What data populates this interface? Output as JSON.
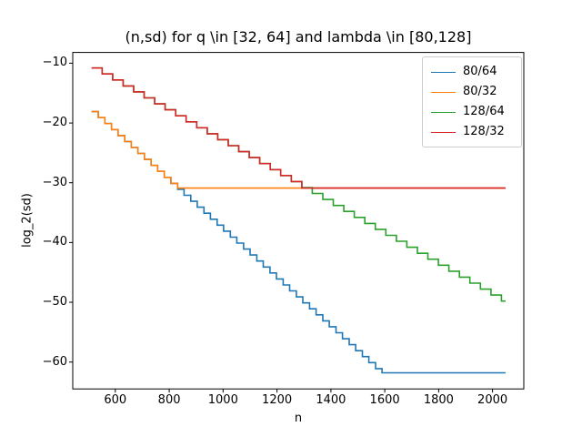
{
  "chart_data": {
    "type": "line",
    "draw_style": "steps-post",
    "title": "(n,sd) for q \\in [32, 64] and lambda \\in [80,128]",
    "xlabel": "n",
    "ylabel": "log_2(sd)",
    "xlim": [
      442,
      2116
    ],
    "ylim": [
      -64.5,
      -8.2
    ],
    "grid": false,
    "legend_position": "upper right",
    "x_ticks": [
      {
        "label": "600",
        "value": 600
      },
      {
        "label": "800",
        "value": 800
      },
      {
        "label": "1000",
        "value": 1000
      },
      {
        "label": "1200",
        "value": 1200
      },
      {
        "label": "1400",
        "value": 1400
      },
      {
        "label": "1600",
        "value": 1600
      },
      {
        "label": "1800",
        "value": 1800
      },
      {
        "label": "2000",
        "value": 2000
      }
    ],
    "y_ticks": [
      {
        "label": "−10",
        "value": -10
      },
      {
        "label": "−20",
        "value": -20
      },
      {
        "label": "−30",
        "value": -30
      },
      {
        "label": "−40",
        "value": -40
      },
      {
        "label": "−50",
        "value": -50
      },
      {
        "label": "−60",
        "value": -60
      }
    ],
    "series": [
      {
        "name": "80/64",
        "color": "#1f77b4",
        "points": [
          [
            512,
            -18.1
          ],
          [
            537,
            -19.1
          ],
          [
            561,
            -20.1
          ],
          [
            586,
            -21.1
          ],
          [
            610,
            -22.1
          ],
          [
            635,
            -23.1
          ],
          [
            659,
            -24.1
          ],
          [
            684,
            -25.1
          ],
          [
            708,
            -26.1
          ],
          [
            733,
            -27.1
          ],
          [
            757,
            -28.1
          ],
          [
            782,
            -29.1
          ],
          [
            806,
            -30.1
          ],
          [
            831,
            -31.1
          ],
          [
            855,
            -32.1
          ],
          [
            880,
            -33.1
          ],
          [
            904,
            -34.1
          ],
          [
            929,
            -35.1
          ],
          [
            953,
            -36.1
          ],
          [
            978,
            -37.1
          ],
          [
            1002,
            -38.1
          ],
          [
            1027,
            -39.1
          ],
          [
            1051,
            -40.1
          ],
          [
            1076,
            -41.1
          ],
          [
            1100,
            -42.1
          ],
          [
            1125,
            -43.1
          ],
          [
            1149,
            -44.1
          ],
          [
            1174,
            -45.1
          ],
          [
            1198,
            -46.1
          ],
          [
            1223,
            -47.1
          ],
          [
            1247,
            -48.1
          ],
          [
            1272,
            -49.1
          ],
          [
            1296,
            -50.1
          ],
          [
            1321,
            -51.1
          ],
          [
            1345,
            -52.1
          ],
          [
            1370,
            -53.1
          ],
          [
            1394,
            -54.1
          ],
          [
            1419,
            -55.1
          ],
          [
            1443,
            -56.1
          ],
          [
            1468,
            -57.1
          ],
          [
            1492,
            -58.1
          ],
          [
            1517,
            -59.1
          ],
          [
            1541,
            -60.1
          ],
          [
            1566,
            -61.1
          ],
          [
            1590,
            -61.8
          ],
          [
            2048,
            -61.8
          ]
        ]
      },
      {
        "name": "80/32",
        "color": "#ff7f0e",
        "points": [
          [
            512,
            -18.1
          ],
          [
            537,
            -19.1
          ],
          [
            561,
            -20.1
          ],
          [
            586,
            -21.1
          ],
          [
            610,
            -22.1
          ],
          [
            635,
            -23.1
          ],
          [
            659,
            -24.1
          ],
          [
            684,
            -25.1
          ],
          [
            708,
            -26.1
          ],
          [
            733,
            -27.1
          ],
          [
            757,
            -28.1
          ],
          [
            782,
            -29.1
          ],
          [
            806,
            -30.1
          ],
          [
            831,
            -30.9
          ],
          [
            2048,
            -30.9
          ]
        ]
      },
      {
        "name": "128/64",
        "color": "#2ca02c",
        "points": [
          [
            512,
            -10.8
          ],
          [
            551,
            -11.8
          ],
          [
            590,
            -12.8
          ],
          [
            629,
            -13.8
          ],
          [
            668,
            -14.8
          ],
          [
            707,
            -15.8
          ],
          [
            746,
            -16.8
          ],
          [
            785,
            -17.8
          ],
          [
            824,
            -18.8
          ],
          [
            863,
            -19.8
          ],
          [
            902,
            -20.8
          ],
          [
            941,
            -21.8
          ],
          [
            980,
            -22.8
          ],
          [
            1019,
            -23.8
          ],
          [
            1058,
            -24.8
          ],
          [
            1097,
            -25.8
          ],
          [
            1136,
            -26.8
          ],
          [
            1175,
            -27.8
          ],
          [
            1214,
            -28.8
          ],
          [
            1253,
            -29.8
          ],
          [
            1292,
            -30.8
          ],
          [
            1331,
            -31.8
          ],
          [
            1370,
            -32.8
          ],
          [
            1409,
            -33.8
          ],
          [
            1448,
            -34.8
          ],
          [
            1487,
            -35.8
          ],
          [
            1526,
            -36.8
          ],
          [
            1565,
            -37.8
          ],
          [
            1604,
            -38.8
          ],
          [
            1643,
            -39.8
          ],
          [
            1682,
            -40.8
          ],
          [
            1721,
            -41.8
          ],
          [
            1760,
            -42.8
          ],
          [
            1799,
            -43.8
          ],
          [
            1838,
            -44.8
          ],
          [
            1877,
            -45.8
          ],
          [
            1916,
            -46.8
          ],
          [
            1955,
            -47.8
          ],
          [
            1994,
            -48.8
          ],
          [
            2033,
            -49.8
          ],
          [
            2048,
            -49.8
          ]
        ]
      },
      {
        "name": "128/32",
        "color": "#d62728",
        "points": [
          [
            512,
            -10.8
          ],
          [
            551,
            -11.8
          ],
          [
            590,
            -12.8
          ],
          [
            629,
            -13.8
          ],
          [
            668,
            -14.8
          ],
          [
            707,
            -15.8
          ],
          [
            746,
            -16.8
          ],
          [
            785,
            -17.8
          ],
          [
            824,
            -18.8
          ],
          [
            863,
            -19.8
          ],
          [
            902,
            -20.8
          ],
          [
            941,
            -21.8
          ],
          [
            980,
            -22.8
          ],
          [
            1019,
            -23.8
          ],
          [
            1058,
            -24.8
          ],
          [
            1097,
            -25.8
          ],
          [
            1136,
            -26.8
          ],
          [
            1175,
            -27.8
          ],
          [
            1214,
            -28.8
          ],
          [
            1253,
            -29.8
          ],
          [
            1292,
            -30.9
          ],
          [
            2048,
            -30.9
          ]
        ]
      }
    ]
  }
}
